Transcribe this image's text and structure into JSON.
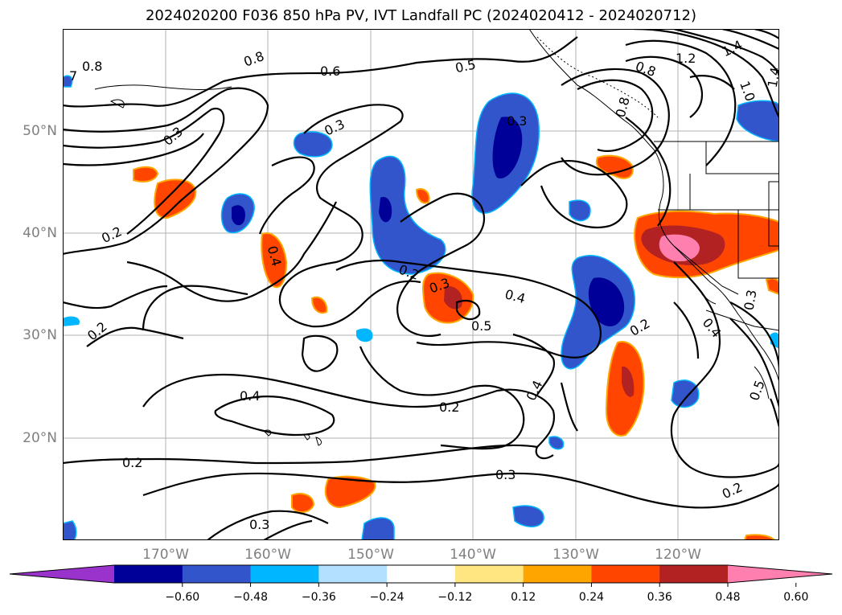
{
  "title": "2024020200 F036 850 hPa PV, IVT Landfall PC (2024020412 - 2024020712)",
  "latitude_labels": [
    "50°N",
    "40°N",
    "30°N",
    "20°N"
  ],
  "longitude_labels": [
    "170°W",
    "160°W",
    "150°W",
    "140°W",
    "130°W",
    "120°W"
  ],
  "colorbar": {
    "ticks": [
      "−0.60",
      "−0.48",
      "−0.36",
      "−0.24",
      "−0.12",
      "0.12",
      "0.24",
      "0.36",
      "0.48",
      "0.60"
    ],
    "colors": [
      "#9933cc",
      "#000099",
      "#3355cc",
      "#00b7ff",
      "#b3e0ff",
      "#ffffff",
      "#ffe680",
      "#ffa500",
      "#ff4500",
      "#b22222",
      "#ff7faf"
    ]
  },
  "contour_labels": [
    {
      "id": "c1",
      "text": "0.8"
    },
    {
      "id": "c2",
      "text": "0.8"
    },
    {
      "id": "c3",
      "text": "0.6"
    },
    {
      "id": "c4",
      "text": "0.5"
    },
    {
      "id": "c5",
      "text": "0.3"
    },
    {
      "id": "c6",
      "text": "0.3"
    },
    {
      "id": "c7",
      "text": "0.3"
    },
    {
      "id": "c8",
      "text": "0.2"
    },
    {
      "id": "c9",
      "text": "0.4"
    },
    {
      "id": "c10",
      "text": "0.2"
    },
    {
      "id": "c11",
      "text": "0.3"
    },
    {
      "id": "c12",
      "text": "0.4"
    },
    {
      "id": "c13",
      "text": "0.5"
    },
    {
      "id": "c14",
      "text": "0.2"
    },
    {
      "id": "c15",
      "text": "0.4"
    },
    {
      "id": "c16",
      "text": "0.2"
    },
    {
      "id": "c17",
      "text": "0.2"
    },
    {
      "id": "c18",
      "text": "0.3"
    },
    {
      "id": "c19",
      "text": "0.2"
    },
    {
      "id": "c20",
      "text": "0.3"
    },
    {
      "id": "c21",
      "text": "0.2"
    },
    {
      "id": "c22",
      "text": "0.4"
    },
    {
      "id": "c23",
      "text": "1.2"
    },
    {
      "id": "c24",
      "text": "1.4"
    },
    {
      "id": "c25",
      "text": "0.8"
    },
    {
      "id": "c26",
      "text": "1.0"
    },
    {
      "id": "c27",
      "text": "1.4"
    },
    {
      "id": "c28",
      "text": "0.8"
    },
    {
      "id": "c29",
      "text": "0.4"
    },
    {
      "id": "c30",
      "text": "0.3"
    },
    {
      "id": "c31",
      "text": "0.5"
    },
    {
      "id": "c32",
      "text": "7"
    }
  ]
}
